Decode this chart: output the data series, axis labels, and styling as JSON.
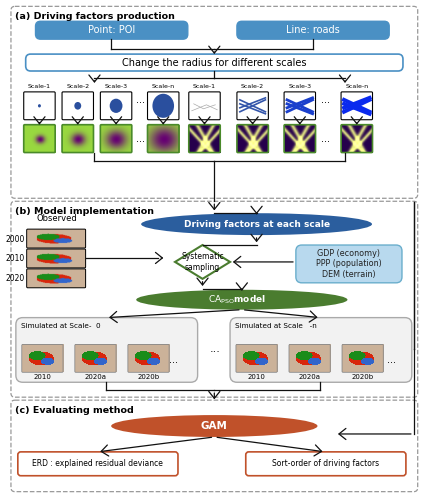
{
  "fig_width": 4.24,
  "fig_height": 5.0,
  "dpi": 100,
  "bg_color": "#ffffff",
  "section_a_label": "(a) Driving factors production",
  "section_b_label": "(b) Model implementation",
  "section_c_label": "(c) Evaluating method",
  "blue_btn_color": "#4a90c4",
  "poi_label": "Point: POI",
  "roads_label": "Line: roads",
  "radius_label": "Change the radius for different scales",
  "scale_labels_l": [
    "Scale-1",
    "Scale-2",
    "Scale-3",
    "Scale-n"
  ],
  "scale_labels_r": [
    "Scale-1",
    "Scale-2",
    "Scale-3",
    "Scale-n"
  ],
  "driving_factors_label": "Driving factors at each scale",
  "systematic_label": "Systematic\nsampling",
  "gdp_box_label": "GDP (economy)\nPPP (population)\nDEM (terrain)",
  "observed_label": "Observed",
  "year_labels": [
    "2000",
    "2010",
    "2020"
  ],
  "sim_scale0_label": "Simulated at Scale-  0",
  "sim_scalen_label": "Simulated at Scale   -n",
  "sim_years": [
    "2010",
    "2020a",
    "2020b"
  ],
  "gam_label": "GAM",
  "erd_label": "ERD : explained residual deviance",
  "sort_label": "Sort-order of driving factors",
  "dark_blue_ellipse": "#2b5e9e",
  "green_ellipse": "#4a7c2f",
  "orange_ellipse": "#c0512a",
  "light_blue_box": "#b8d9ee",
  "light_blue_edge": "#6aaecc",
  "orange_box_edge": "#c0512a",
  "dashed_box_color": "#999999",
  "diamond_edge": "#4a7c2f",
  "arrow_color": "#111111",
  "blue_dot_color": "#2a4f9e",
  "blue_line_color": "#1a3f8e",
  "heatmap_green_edge": "#4a8a2a",
  "heatmap_purple_center": "#3d0080",
  "heatmap_outer": "#9fd84a"
}
